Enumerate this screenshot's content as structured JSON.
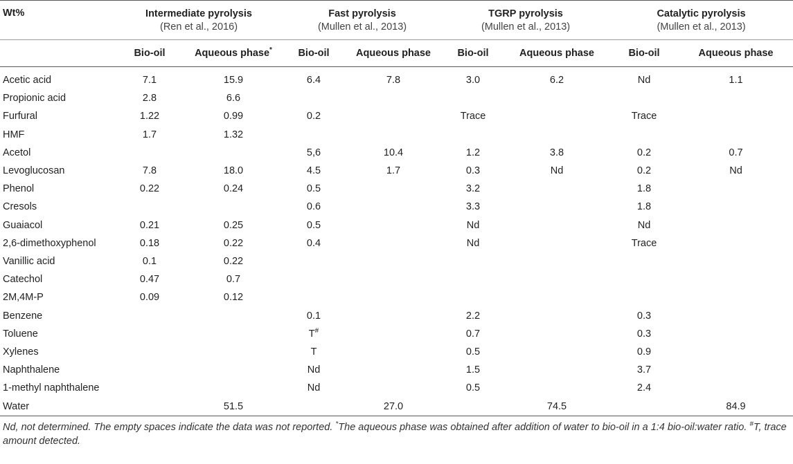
{
  "table": {
    "corner_label": "Wt%",
    "groups": [
      {
        "title": "Intermediate pyrolysis",
        "ref": "(Ren et al., 2016)"
      },
      {
        "title": "Fast pyrolysis",
        "ref": "(Mullen et al., 2013)"
      },
      {
        "title": "TGRP pyrolysis",
        "ref": "(Mullen et al., 2013)"
      },
      {
        "title": "Catalytic pyrolysis",
        "ref": "(Mullen et al., 2013)"
      }
    ],
    "sub": {
      "bio_oil": "Bio-oil",
      "aqueous": "Aqueous phase",
      "aqueous_mark": "*"
    },
    "rows": [
      {
        "label": "Acetic acid",
        "v": [
          "7.1",
          "15.9",
          "6.4",
          "7.8",
          "3.0",
          "6.2",
          "Nd",
          "1.1"
        ]
      },
      {
        "label": "Propionic acid",
        "v": [
          "2.8",
          "6.6",
          "",
          "",
          "",
          "",
          "",
          ""
        ]
      },
      {
        "label": "Furfural",
        "v": [
          "1.22",
          "0.99",
          "0.2",
          "",
          "Trace",
          "",
          "Trace",
          ""
        ]
      },
      {
        "label": "HMF",
        "v": [
          "1.7",
          "1.32",
          "",
          "",
          "",
          "",
          "",
          ""
        ]
      },
      {
        "label": "Acetol",
        "v": [
          "",
          "",
          "5,6",
          "10.4",
          "1.2",
          "3.8",
          "0.2",
          "0.7"
        ]
      },
      {
        "label": "Levoglucosan",
        "v": [
          "7.8",
          "18.0",
          "4.5",
          "1.7",
          "0.3",
          "Nd",
          "0.2",
          "Nd"
        ]
      },
      {
        "label": "Phenol",
        "v": [
          "0.22",
          "0.24",
          "0.5",
          "",
          "3.2",
          "",
          "1.8",
          ""
        ]
      },
      {
        "label": "Cresols",
        "v": [
          "",
          "",
          "0.6",
          "",
          "3.3",
          "",
          "1.8",
          ""
        ]
      },
      {
        "label": "Guaiacol",
        "v": [
          "0.21",
          "0.25",
          "0.5",
          "",
          "Nd",
          "",
          "Nd",
          ""
        ]
      },
      {
        "label": "2,6-dimethoxyphenol",
        "v": [
          "0.18",
          "0.22",
          "0.4",
          "",
          "Nd",
          "",
          "Trace",
          ""
        ]
      },
      {
        "label": "Vanillic acid",
        "v": [
          "0.1",
          "0.22",
          "",
          "",
          "",
          "",
          "",
          ""
        ]
      },
      {
        "label": "Catechol",
        "v": [
          "0.47",
          "0.7",
          "",
          "",
          "",
          "",
          "",
          ""
        ]
      },
      {
        "label": "2M,4M-P",
        "v": [
          "0.09",
          "0.12",
          "",
          "",
          "",
          "",
          "",
          ""
        ]
      },
      {
        "label": "Benzene",
        "v": [
          "",
          "",
          "0.1",
          "",
          "2.2",
          "",
          "0.3",
          ""
        ]
      },
      {
        "label": "Toluene",
        "v": [
          "",
          "",
          "T",
          "",
          "0.7",
          "",
          "0.3",
          ""
        ],
        "toluene_mark": "#"
      },
      {
        "label": "Xylenes",
        "v": [
          "",
          "",
          "T",
          "",
          "0.5",
          "",
          "0.9",
          ""
        ]
      },
      {
        "label": "Naphthalene",
        "v": [
          "",
          "",
          "Nd",
          "",
          "1.5",
          "",
          "3.7",
          ""
        ]
      },
      {
        "label": "1-methyl naphthalene",
        "v": [
          "",
          "",
          "Nd",
          "",
          "0.5",
          "",
          "2.4",
          ""
        ]
      },
      {
        "label": "Water",
        "v": [
          "",
          "51.5",
          "",
          "27.0",
          "",
          "74.5",
          "",
          "84.9"
        ]
      }
    ]
  },
  "footnote": {
    "p1": "Nd, not determined. The empty spaces indicate the data was not reported. ",
    "mark1": "*",
    "p2": "The aqueous phase was obtained after addition of water to bio-oil in a 1:4 bio-oil:water ratio. ",
    "mark2": "#",
    "p3": "T, trace amount detected."
  }
}
